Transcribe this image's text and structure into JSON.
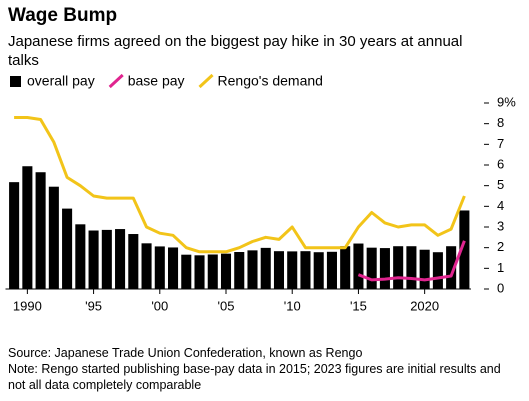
{
  "chart_data": {
    "type": "bar",
    "title": "Wage Bump",
    "subtitle": "Japanese firms agreed on the biggest pay hike in 30 years at annual talks",
    "x": [
      1989,
      1990,
      1991,
      1992,
      1993,
      1994,
      1995,
      1996,
      1997,
      1998,
      1999,
      2000,
      2001,
      2002,
      2003,
      2004,
      2005,
      2006,
      2007,
      2008,
      2009,
      2010,
      2011,
      2012,
      2013,
      2014,
      2015,
      2016,
      2017,
      2018,
      2019,
      2020,
      2021,
      2022,
      2023
    ],
    "series": [
      {
        "name": "overall pay",
        "type": "bar",
        "color": "#000000",
        "values": [
          5.17,
          5.94,
          5.65,
          4.95,
          3.89,
          3.13,
          2.83,
          2.86,
          2.9,
          2.66,
          2.21,
          2.06,
          2.01,
          1.66,
          1.63,
          1.67,
          1.71,
          1.79,
          1.87,
          1.99,
          1.83,
          1.82,
          1.83,
          1.78,
          1.8,
          2.07,
          2.2,
          2.0,
          1.98,
          2.07,
          2.07,
          1.9,
          1.78,
          2.07,
          3.8
        ]
      },
      {
        "name": "base pay",
        "type": "line",
        "color": "#e0248f",
        "values": [
          null,
          null,
          null,
          null,
          null,
          null,
          null,
          null,
          null,
          null,
          null,
          null,
          null,
          null,
          null,
          null,
          null,
          null,
          null,
          null,
          null,
          null,
          null,
          null,
          null,
          null,
          0.69,
          0.44,
          0.48,
          0.54,
          0.51,
          0.44,
          0.53,
          0.63,
          2.33
        ]
      },
      {
        "name": "Rengo's demand",
        "type": "line",
        "color": "#f2c419",
        "values": [
          8.3,
          8.3,
          8.2,
          7.1,
          5.4,
          5.0,
          4.5,
          4.4,
          4.4,
          4.4,
          3.0,
          2.7,
          2.6,
          2.0,
          1.8,
          1.8,
          1.8,
          2.0,
          2.3,
          2.5,
          2.4,
          3.0,
          2.0,
          2.0,
          2.0,
          2.0,
          3.0,
          3.7,
          3.2,
          3.0,
          3.1,
          3.1,
          2.6,
          2.9,
          4.5
        ]
      }
    ],
    "xlim": [
      1988.5,
      2023.5
    ],
    "xticks": [
      {
        "value": 1990,
        "label": "1990"
      },
      {
        "value": 1995,
        "label": "'95"
      },
      {
        "value": 2000,
        "label": "'00"
      },
      {
        "value": 2005,
        "label": "'05"
      },
      {
        "value": 2010,
        "label": "'10"
      },
      {
        "value": 2015,
        "label": "'15"
      },
      {
        "value": 2020,
        "label": "2020"
      }
    ],
    "ylim": [
      0,
      9
    ],
    "yticks": [
      0,
      1,
      2,
      3,
      4,
      5,
      6,
      7,
      8,
      {
        "value": 9,
        "label": "9%"
      }
    ],
    "y_axis_side": "right",
    "grid": false,
    "source": "Source: Japanese Trade Union Confederation, known as Rengo",
    "note": "Note: Rengo started publishing base-pay data in 2015; 2023 figures are initial results and not all data completely comparable"
  }
}
